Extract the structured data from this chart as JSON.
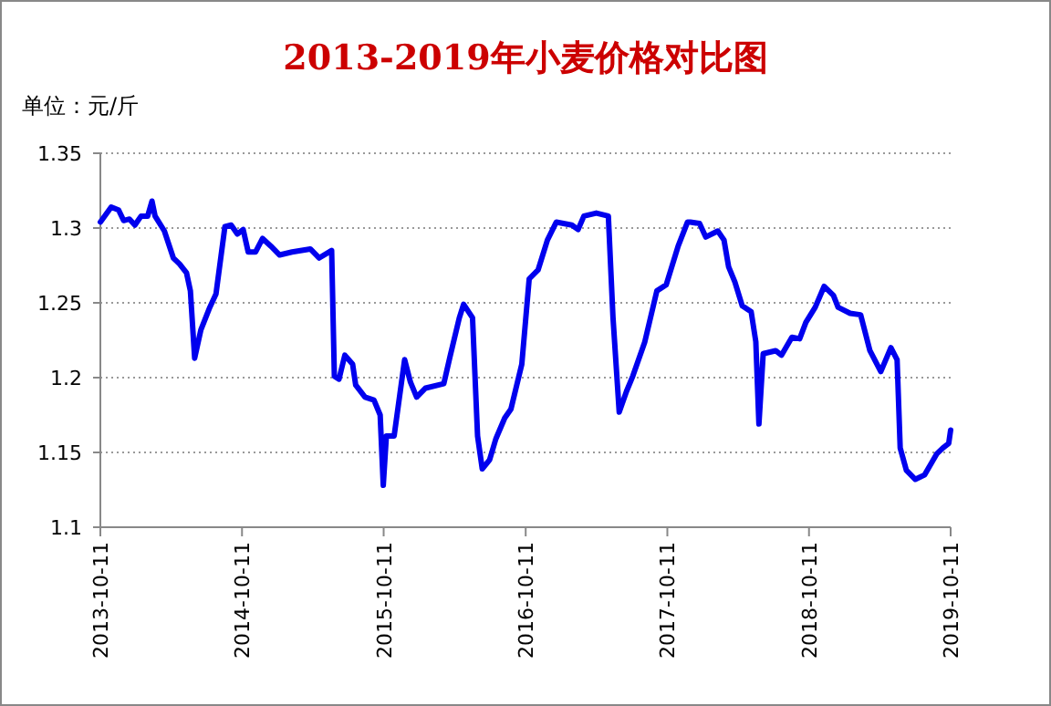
{
  "chart_data": {
    "type": "line",
    "title": "2013-2019年小麦价格对比图",
    "ylabel": "单位：元/斤",
    "xlim": [
      "2013-10-11",
      "2019-10-11"
    ],
    "xticks": [
      "2013-10-11",
      "2014-10-11",
      "2015-10-11",
      "2016-10-11",
      "2017-10-11",
      "2018-10-11",
      "2019-10-11"
    ],
    "ylim": [
      1.1,
      1.35
    ],
    "yticks": [
      1.1,
      1.15,
      1.2,
      1.25,
      1.3,
      1.35
    ],
    "grid": "y",
    "marker": "none",
    "line_style": "solid",
    "series": [
      {
        "color": "#0000ee",
        "x": [
          "2013-10-11",
          "2013-11-08",
          "2013-11-27",
          "2013-12-10",
          "2013-12-25",
          "2014-01-08",
          "2014-01-24",
          "2014-02-10",
          "2014-02-21",
          "2014-03-01",
          "2014-03-25",
          "2014-04-17",
          "2014-05-03",
          "2014-05-21",
          "2014-05-31",
          "2014-06-11",
          "2014-06-27",
          "2014-07-20",
          "2014-08-05",
          "2014-08-28",
          "2014-09-13",
          "2014-09-29",
          "2014-10-14",
          "2014-10-27",
          "2014-11-15",
          "2014-12-03",
          "2014-12-24",
          "2015-01-16",
          "2015-02-17",
          "2015-04-05",
          "2015-04-28",
          "2015-05-30",
          "2015-06-06",
          "2015-06-18",
          "2015-07-03",
          "2015-07-23",
          "2015-07-31",
          "2015-08-24",
          "2015-09-16",
          "2015-10-02",
          "2015-10-10",
          "2015-10-18",
          "2015-11-07",
          "2015-12-04",
          "2015-12-19",
          "2016-01-04",
          "2016-01-27",
          "2016-03-14",
          "2016-03-30",
          "2016-04-23",
          "2016-05-04",
          "2016-05-27",
          "2016-06-09",
          "2016-06-21",
          "2016-07-10",
          "2016-07-26",
          "2016-08-18",
          "2016-09-03",
          "2016-10-01",
          "2016-10-20",
          "2016-11-12",
          "2016-12-06",
          "2016-12-29",
          "2017-02-07",
          "2017-02-23",
          "2017-03-10",
          "2017-04-11",
          "2017-05-12",
          "2017-05-24",
          "2017-06-09",
          "2017-06-28",
          "2017-07-14",
          "2017-08-14",
          "2017-09-14",
          "2017-10-08",
          "2017-11-08",
          "2017-12-02",
          "2017-12-09",
          "2018-01-02",
          "2018-01-18",
          "2018-02-18",
          "2018-03-06",
          "2018-03-18",
          "2018-04-03",
          "2018-04-22",
          "2018-05-15",
          "2018-05-27",
          "2018-06-04",
          "2018-06-15",
          "2018-07-17",
          "2018-08-01",
          "2018-08-28",
          "2018-09-17",
          "2018-10-03",
          "2018-10-27",
          "2018-11-19",
          "2018-12-13",
          "2018-12-25",
          "2019-01-25",
          "2019-02-21",
          "2019-03-17",
          "2019-04-14",
          "2019-05-10",
          "2019-05-26",
          "2019-06-03",
          "2019-06-19",
          "2019-07-12",
          "2019-08-05",
          "2019-09-05",
          "2019-09-21",
          "2019-10-06",
          "2019-10-11"
        ],
        "values": [
          1.304,
          1.314,
          1.312,
          1.305,
          1.306,
          1.302,
          1.308,
          1.308,
          1.318,
          1.308,
          1.298,
          1.28,
          1.276,
          1.27,
          1.258,
          1.213,
          1.232,
          1.247,
          1.256,
          1.301,
          1.302,
          1.296,
          1.299,
          1.284,
          1.284,
          1.293,
          1.288,
          1.282,
          1.284,
          1.286,
          1.28,
          1.285,
          1.201,
          1.199,
          1.215,
          1.209,
          1.195,
          1.187,
          1.185,
          1.175,
          1.128,
          1.161,
          1.161,
          1.212,
          1.197,
          1.187,
          1.193,
          1.196,
          1.214,
          1.24,
          1.249,
          1.24,
          1.161,
          1.139,
          1.145,
          1.159,
          1.173,
          1.179,
          1.209,
          1.266,
          1.272,
          1.292,
          1.304,
          1.302,
          1.299,
          1.308,
          1.31,
          1.308,
          1.24,
          1.177,
          1.191,
          1.201,
          1.224,
          1.258,
          1.262,
          1.288,
          1.304,
          1.304,
          1.303,
          1.294,
          1.298,
          1.292,
          1.274,
          1.264,
          1.248,
          1.244,
          1.224,
          1.169,
          1.216,
          1.218,
          1.215,
          1.227,
          1.226,
          1.237,
          1.247,
          1.261,
          1.255,
          1.247,
          1.243,
          1.242,
          1.218,
          1.204,
          1.22,
          1.212,
          1.153,
          1.138,
          1.132,
          1.135,
          1.149,
          1.153,
          1.156,
          1.165
        ]
      }
    ]
  }
}
